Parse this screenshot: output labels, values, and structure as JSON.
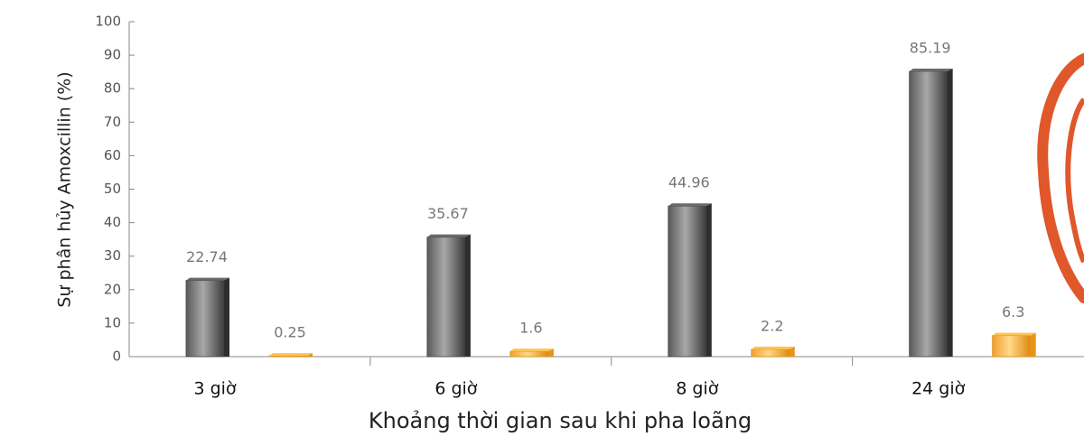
{
  "chart_data": {
    "type": "bar",
    "x_label": "Khoảng thời gian sau khi pha loãng",
    "y_label": "Sự phân hủy Amoxcillin (%)",
    "categories": [
      "3 giờ",
      "6 giờ",
      "8 giờ",
      "24 giờ"
    ],
    "series": [
      {
        "color": "#8a8a8a",
        "values": [
          22.74,
          35.67,
          44.96,
          85.19
        ]
      },
      {
        "color": "#f5a623",
        "values": [
          0.25,
          1.6,
          2.2,
          6.3
        ]
      }
    ],
    "ylim": [
      0,
      100
    ],
    "yticks": [
      0,
      10,
      20,
      30,
      40,
      50,
      60,
      70,
      80,
      90,
      100
    ]
  }
}
